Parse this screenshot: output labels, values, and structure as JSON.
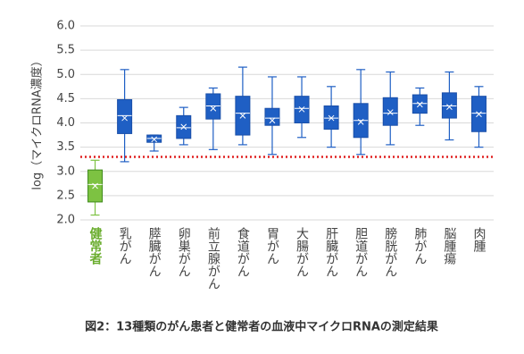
{
  "chart_data": {
    "type": "box",
    "caption": "図2：13種類のがん患者と健常者の血液中マイクロRNAの測定結果",
    "y_label": "log（マイクロRNA濃度）",
    "categories": [
      "健常者",
      "乳がん",
      "膵臓がん",
      "卵巣がん",
      "前立腺がん",
      "食道がん",
      "胃がん",
      "大腸がん",
      "肝臓がん",
      "胆道がん",
      "膀胱がん",
      "肺がん",
      "脳腫瘍",
      "肉腫"
    ],
    "min": [
      2.1,
      3.2,
      3.42,
      3.55,
      3.45,
      3.55,
      3.35,
      3.7,
      3.5,
      3.35,
      3.55,
      3.95,
      3.65,
      3.5
    ],
    "q1": [
      2.37,
      3.78,
      3.6,
      3.68,
      4.08,
      3.75,
      3.95,
      4.0,
      3.87,
      3.7,
      3.95,
      4.2,
      4.1,
      3.82
    ],
    "median": [
      2.73,
      4.15,
      3.68,
      3.9,
      4.35,
      4.2,
      4.1,
      4.3,
      4.1,
      4.05,
      4.2,
      4.4,
      4.35,
      4.2
    ],
    "q3": [
      3.03,
      4.48,
      3.75,
      4.15,
      4.6,
      4.55,
      4.3,
      4.55,
      4.35,
      4.4,
      4.52,
      4.58,
      4.62,
      4.55
    ],
    "max": [
      3.23,
      5.1,
      3.75,
      4.32,
      4.72,
      5.15,
      4.95,
      4.95,
      4.75,
      5.1,
      5.05,
      4.72,
      5.05,
      4.75
    ],
    "mean": [
      2.7,
      4.1,
      3.66,
      3.92,
      4.3,
      4.15,
      4.05,
      4.28,
      4.1,
      4.02,
      4.22,
      4.38,
      4.33,
      4.18
    ],
    "colors": [
      "#7dc242",
      "#1f5fc4",
      "#1f5fc4",
      "#1f5fc4",
      "#1f5fc4",
      "#1f5fc4",
      "#1f5fc4",
      "#1f5fc4",
      "#1f5fc4",
      "#1f5fc4",
      "#1f5fc4",
      "#1f5fc4",
      "#1f5fc4",
      "#1f5fc4"
    ],
    "label_colors": [
      "#6aad2e",
      "#444444",
      "#444444",
      "#444444",
      "#444444",
      "#444444",
      "#444444",
      "#444444",
      "#444444",
      "#444444",
      "#444444",
      "#444444",
      "#444444",
      "#444444"
    ],
    "threshold": 3.3,
    "threshold_color": "#e02020",
    "ylim": [
      2.0,
      6.0
    ],
    "yticks": [
      {
        "value": 2.0,
        "label": "2.0"
      },
      {
        "value": 2.5,
        "label": "2.5"
      },
      {
        "value": 3.0,
        "label": "3.0"
      },
      {
        "value": 3.5,
        "label": "3.5"
      },
      {
        "value": 4.0,
        "label": "4.0"
      },
      {
        "value": 4.5,
        "label": "4.5"
      },
      {
        "value": 5.0,
        "label": "5.0"
      },
      {
        "value": 5.5,
        "label": "5.5"
      },
      {
        "value": 6.0,
        "label": "6.0"
      }
    ],
    "grid": true
  }
}
